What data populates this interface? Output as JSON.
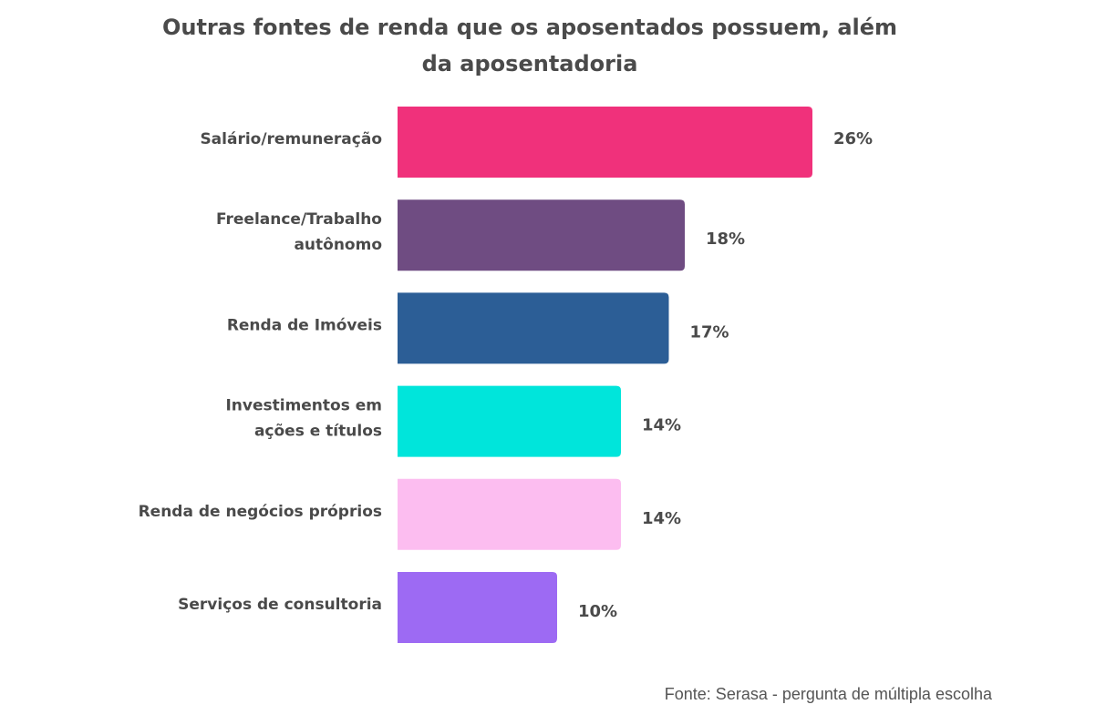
{
  "chart_data": {
    "type": "bar",
    "orientation": "horizontal",
    "title_lines": [
      "Outras fontes de renda que os aposentados possuem, além",
      "da aposentadoria"
    ],
    "categories": [
      [
        "Salário/remuneração"
      ],
      [
        "Freelance/Trabalho",
        "autônomo"
      ],
      [
        "Renda de Imóveis"
      ],
      [
        "Investimentos em",
        "ações e títulos"
      ],
      [
        "Renda de negócios próprios"
      ],
      [
        "Serviços de consultoria"
      ]
    ],
    "values": [
      26,
      18,
      17,
      14,
      14,
      10
    ],
    "value_labels": [
      "26%",
      "18%",
      "17%",
      "14%",
      "14%",
      "10%"
    ],
    "colors": [
      "#F0317B",
      "#6F4C82",
      "#2C5E96",
      "#00E5DB",
      "#FCBDF0",
      "#9D6AF3"
    ],
    "xlim": [
      0,
      26
    ],
    "grid": false,
    "legend": "none",
    "source": "Fonte: Serasa - pergunta de múltipla escolha"
  }
}
